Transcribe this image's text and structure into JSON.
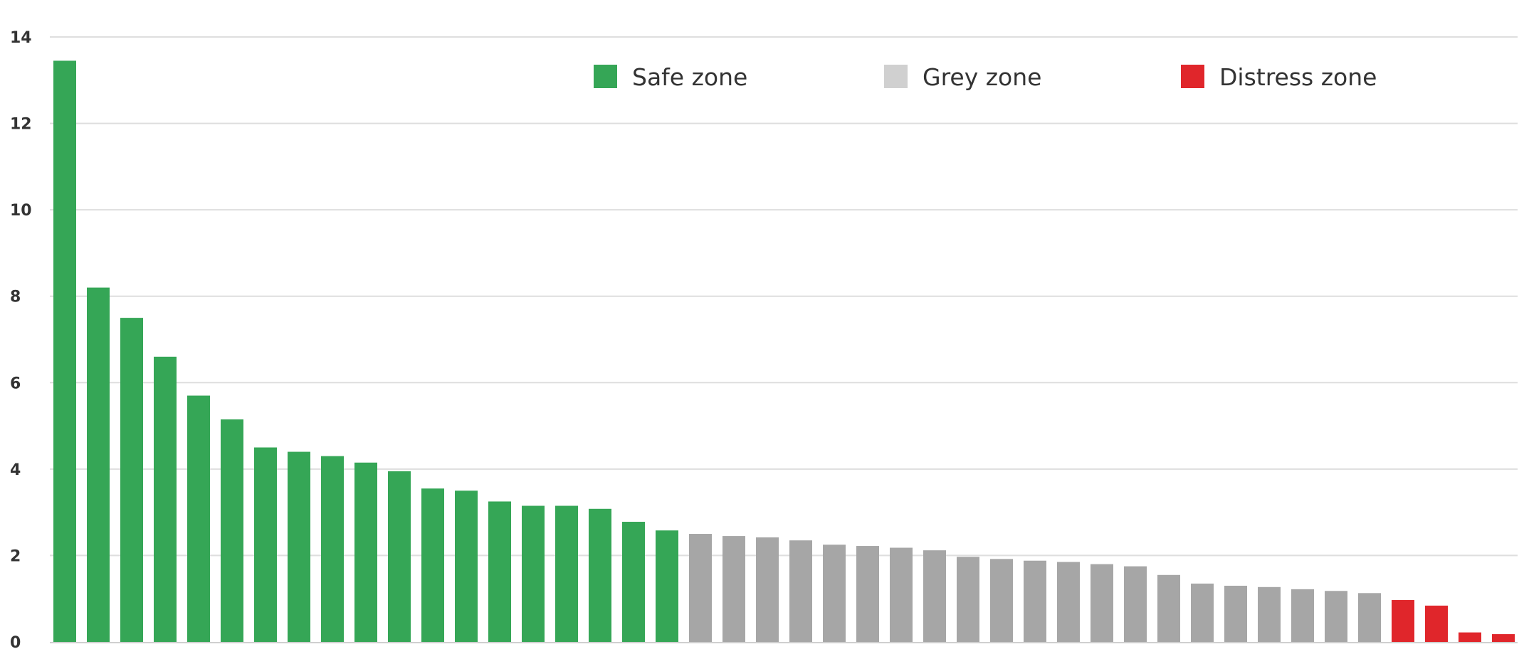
{
  "chart_data": {
    "type": "bar",
    "title": "",
    "xlabel": "",
    "ylabel": "",
    "ylim": [
      0,
      14
    ],
    "y_ticks": [
      "0",
      "2",
      "4",
      "6",
      "8",
      "10",
      "12",
      "14"
    ],
    "grid": true,
    "legend_position": "top-center",
    "zones": [
      {
        "key": "safe",
        "label": "Safe zone",
        "color": "#35a656"
      },
      {
        "key": "grey",
        "label": "Grey zone",
        "color": "#a6a6a6",
        "legend_color": "#d0d0d0"
      },
      {
        "key": "distress",
        "label": "Distress zone",
        "color": "#e0262b"
      }
    ],
    "values": [
      13.45,
      8.2,
      7.5,
      6.6,
      5.7,
      5.15,
      4.5,
      4.4,
      4.3,
      4.15,
      3.95,
      3.55,
      3.5,
      3.25,
      3.15,
      3.15,
      3.08,
      2.78,
      2.58,
      2.5,
      2.45,
      2.42,
      2.35,
      2.25,
      2.22,
      2.18,
      2.12,
      1.97,
      1.92,
      1.88,
      1.85,
      1.8,
      1.75,
      1.55,
      1.35,
      1.3,
      1.27,
      1.22,
      1.18,
      1.13,
      0.97,
      0.84,
      0.22,
      0.18
    ],
    "zone_of_bar": [
      "safe",
      "safe",
      "safe",
      "safe",
      "safe",
      "safe",
      "safe",
      "safe",
      "safe",
      "safe",
      "safe",
      "safe",
      "safe",
      "safe",
      "safe",
      "safe",
      "safe",
      "safe",
      "safe",
      "grey",
      "grey",
      "grey",
      "grey",
      "grey",
      "grey",
      "grey",
      "grey",
      "grey",
      "grey",
      "grey",
      "grey",
      "grey",
      "grey",
      "grey",
      "grey",
      "grey",
      "grey",
      "grey",
      "grey",
      "grey",
      "distress",
      "distress",
      "distress",
      "distress"
    ]
  }
}
